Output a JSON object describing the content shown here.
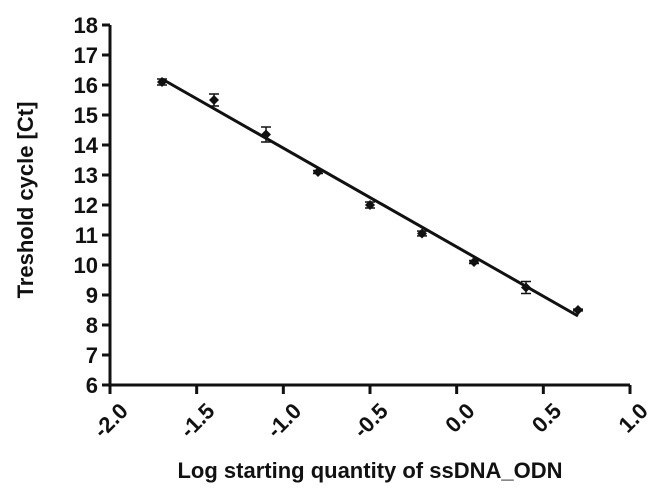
{
  "chart_data": {
    "type": "scatter",
    "xlabel": "Log starting quantity of ssDNA_ODN",
    "ylabel": "Treshold cycle [Ct]",
    "xlim": [
      -2.0,
      1.0
    ],
    "ylim": [
      6,
      18
    ],
    "x_ticks": [
      "-2.0",
      "-1.5",
      "-1.0",
      "-0.5",
      "0.0",
      "0.5",
      "1.0"
    ],
    "y_ticks": [
      "6",
      "7",
      "8",
      "9",
      "10",
      "11",
      "12",
      "13",
      "14",
      "15",
      "16",
      "17",
      "18"
    ],
    "grid": false,
    "points": [
      {
        "x": -1.7,
        "y": 16.1,
        "err": 0.1
      },
      {
        "x": -1.4,
        "y": 15.5,
        "err": 0.2
      },
      {
        "x": -1.1,
        "y": 14.35,
        "err": 0.25
      },
      {
        "x": -0.8,
        "y": 13.1,
        "err": 0.05
      },
      {
        "x": -0.5,
        "y": 12.0,
        "err": 0.1
      },
      {
        "x": -0.2,
        "y": 11.05,
        "err": 0.08
      },
      {
        "x": 0.1,
        "y": 10.1,
        "err": 0.05
      },
      {
        "x": 0.4,
        "y": 9.25,
        "err": 0.2
      },
      {
        "x": 0.7,
        "y": 8.5,
        "err": 0.03
      }
    ],
    "fit_line": {
      "x": [
        -1.7,
        0.7
      ],
      "y": [
        16.2,
        8.3
      ]
    },
    "color": "#111111"
  }
}
